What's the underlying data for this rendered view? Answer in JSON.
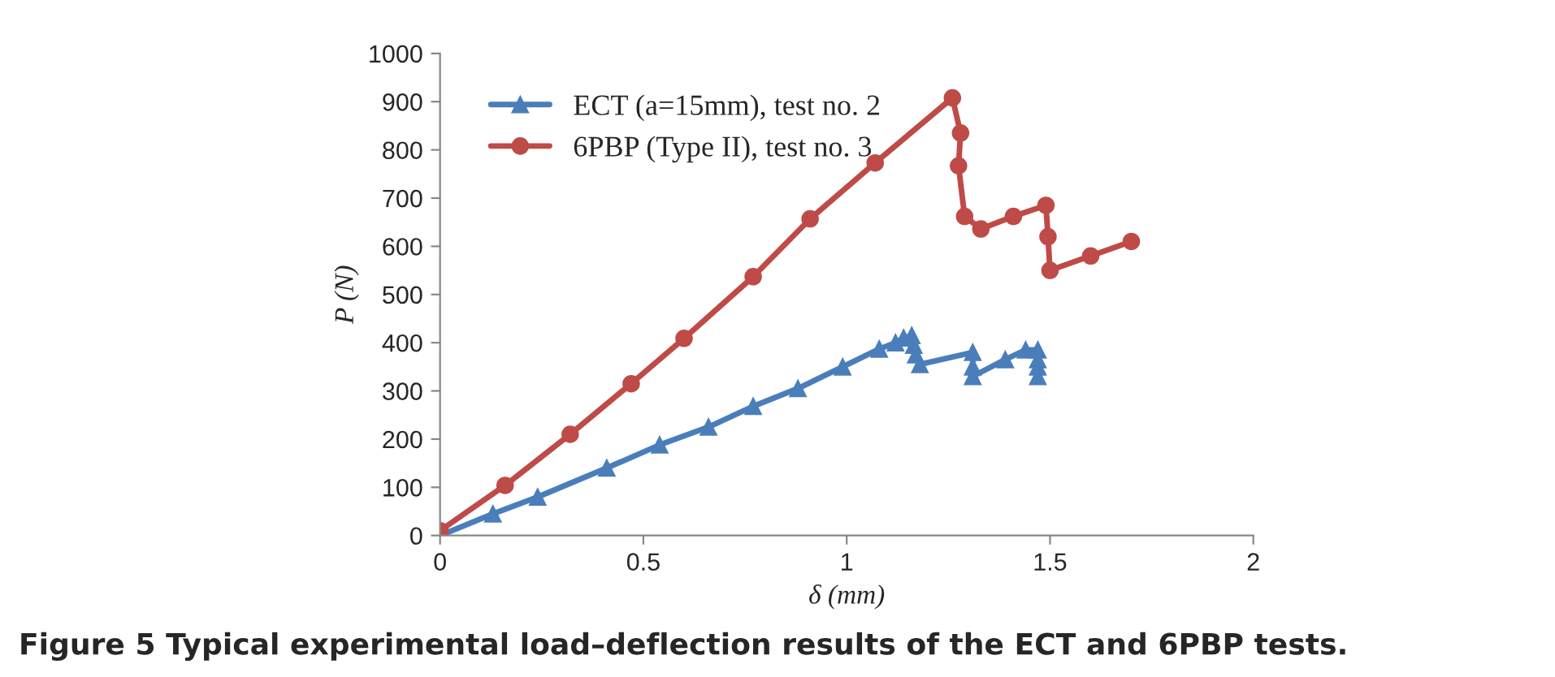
{
  "chart_data": {
    "type": "line",
    "xlabel": "δ (mm)",
    "ylabel": "P (N)",
    "xlim": [
      0,
      2
    ],
    "xticks": [
      0,
      0.5,
      1,
      1.5,
      2
    ],
    "ylim": [
      0,
      1000
    ],
    "yticks": [
      0,
      100,
      200,
      300,
      400,
      500,
      600,
      700,
      800,
      900,
      1000
    ],
    "grid": false,
    "legend": "top left",
    "annotations": [
      "Figure 5 Typical experimental load–deflection results of the ECT and 6PBP tests."
    ],
    "series": [
      {
        "name": "ECT (a=15mm), test no. 2",
        "color": "#4a7ebb",
        "marker": "triangle",
        "x": [
          0,
          0.13,
          0.24,
          0.41,
          0.54,
          0.66,
          0.77,
          0.88,
          0.99,
          1.08,
          1.12,
          1.14,
          1.16,
          1.165,
          1.17,
          1.18,
          1.31,
          1.31,
          1.31,
          1.39,
          1.44,
          1.47,
          1.47,
          1.47,
          1.47
        ],
        "values": [
          0,
          45,
          80,
          140,
          188,
          225,
          268,
          305,
          350,
          387,
          400,
          410,
          415,
          395,
          375,
          355,
          380,
          350,
          330,
          365,
          385,
          385,
          365,
          350,
          330
        ]
      },
      {
        "name": "6PBP (Type II), test no. 3",
        "color": "#be4b48",
        "marker": "circle",
        "x": [
          0,
          0.16,
          0.32,
          0.47,
          0.6,
          0.77,
          0.91,
          1.07,
          1.26,
          1.28,
          1.275,
          1.29,
          1.33,
          1.41,
          1.49,
          1.495,
          1.5,
          1.6,
          1.7
        ],
        "values": [
          10,
          104,
          210,
          315,
          409,
          537,
          657,
          773,
          908,
          835,
          767,
          662,
          636,
          662,
          685,
          620,
          550,
          580,
          610
        ]
      }
    ]
  }
}
